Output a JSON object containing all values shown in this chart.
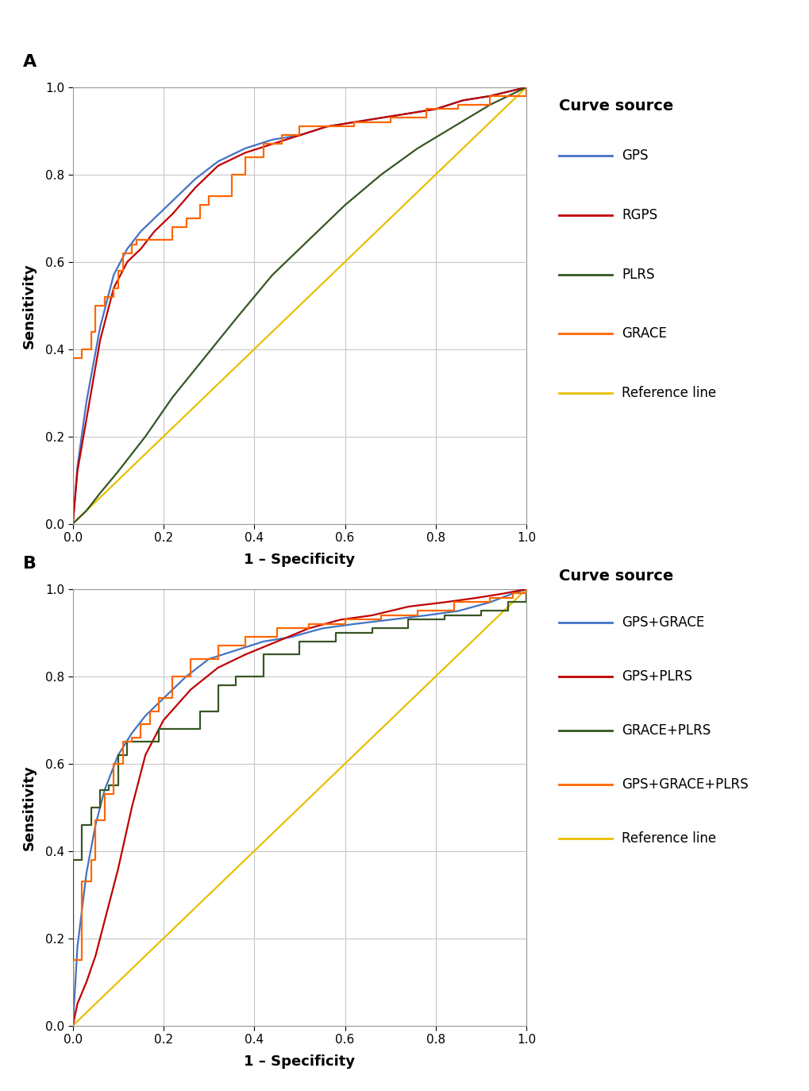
{
  "panel_A": {
    "label": "A",
    "curves": {
      "GPS": {
        "color": "#4472C4",
        "type": "smooth",
        "fpr": [
          0.0,
          0.01,
          0.03,
          0.06,
          0.09,
          0.12,
          0.15,
          0.18,
          0.22,
          0.27,
          0.32,
          0.38,
          0.44,
          0.5,
          0.56,
          0.62,
          0.68,
          0.74,
          0.8,
          0.86,
          0.92,
          0.96,
          1.0
        ],
        "tpr": [
          0.0,
          0.13,
          0.28,
          0.45,
          0.57,
          0.63,
          0.67,
          0.7,
          0.74,
          0.79,
          0.83,
          0.86,
          0.88,
          0.89,
          0.91,
          0.92,
          0.93,
          0.94,
          0.95,
          0.97,
          0.98,
          0.99,
          1.0
        ]
      },
      "RGPS": {
        "color": "#C00000",
        "type": "smooth",
        "fpr": [
          0.0,
          0.01,
          0.03,
          0.06,
          0.09,
          0.12,
          0.15,
          0.18,
          0.22,
          0.27,
          0.32,
          0.38,
          0.44,
          0.5,
          0.56,
          0.62,
          0.68,
          0.74,
          0.8,
          0.86,
          0.92,
          0.96,
          1.0
        ],
        "tpr": [
          0.0,
          0.12,
          0.24,
          0.42,
          0.54,
          0.6,
          0.63,
          0.67,
          0.71,
          0.77,
          0.82,
          0.85,
          0.87,
          0.89,
          0.91,
          0.92,
          0.93,
          0.94,
          0.95,
          0.97,
          0.98,
          0.99,
          1.0
        ]
      },
      "PLRS": {
        "color": "#375623",
        "type": "smooth",
        "fpr": [
          0.0,
          0.03,
          0.06,
          0.1,
          0.16,
          0.22,
          0.29,
          0.36,
          0.44,
          0.52,
          0.6,
          0.68,
          0.76,
          0.84,
          0.92,
          1.0
        ],
        "tpr": [
          0.0,
          0.03,
          0.07,
          0.12,
          0.2,
          0.29,
          0.38,
          0.47,
          0.57,
          0.65,
          0.73,
          0.8,
          0.86,
          0.91,
          0.96,
          1.0
        ]
      },
      "GRACE": {
        "color": "#FF6600",
        "type": "step",
        "fpr": [
          0.0,
          0.0,
          0.02,
          0.04,
          0.05,
          0.07,
          0.09,
          0.1,
          0.11,
          0.13,
          0.14,
          0.16,
          0.18,
          0.19,
          0.22,
          0.25,
          0.28,
          0.3,
          0.35,
          0.38,
          0.42,
          0.46,
          0.5,
          0.56,
          0.62,
          0.7,
          0.78,
          0.85,
          0.92,
          1.0
        ],
        "tpr": [
          0.0,
          0.38,
          0.4,
          0.44,
          0.5,
          0.52,
          0.54,
          0.58,
          0.62,
          0.64,
          0.65,
          0.65,
          0.65,
          0.65,
          0.68,
          0.7,
          0.73,
          0.75,
          0.8,
          0.84,
          0.87,
          0.89,
          0.91,
          0.91,
          0.92,
          0.93,
          0.95,
          0.96,
          0.98,
          1.0
        ]
      },
      "Reference": {
        "color": "#E8C000",
        "type": "line",
        "fpr": [
          0.0,
          1.0
        ],
        "tpr": [
          0.0,
          1.0
        ]
      }
    },
    "legend_labels": [
      "GPS",
      "RGPS",
      "PLRS",
      "GRACE",
      "Reference line"
    ],
    "legend_colors": [
      "#4472C4",
      "#C00000",
      "#375623",
      "#FF6600",
      "#E8C000"
    ]
  },
  "panel_B": {
    "label": "B",
    "curves": {
      "GPS+GRACE": {
        "color": "#4472C4",
        "type": "smooth",
        "fpr": [
          0.0,
          0.01,
          0.03,
          0.05,
          0.07,
          0.1,
          0.13,
          0.16,
          0.2,
          0.25,
          0.3,
          0.36,
          0.42,
          0.48,
          0.55,
          0.62,
          0.7,
          0.78,
          0.85,
          0.92,
          0.97,
          1.0
        ],
        "tpr": [
          0.0,
          0.18,
          0.35,
          0.46,
          0.54,
          0.62,
          0.67,
          0.71,
          0.75,
          0.8,
          0.84,
          0.86,
          0.88,
          0.89,
          0.91,
          0.92,
          0.93,
          0.94,
          0.95,
          0.97,
          0.99,
          1.0
        ]
      },
      "GPS+PLRS": {
        "color": "#C00000",
        "type": "smooth",
        "fpr": [
          0.0,
          0.01,
          0.03,
          0.05,
          0.07,
          0.1,
          0.13,
          0.16,
          0.2,
          0.26,
          0.32,
          0.38,
          0.45,
          0.52,
          0.59,
          0.66,
          0.74,
          0.82,
          0.89,
          0.95,
          1.0
        ],
        "tpr": [
          0.0,
          0.05,
          0.1,
          0.16,
          0.24,
          0.36,
          0.5,
          0.62,
          0.7,
          0.77,
          0.82,
          0.85,
          0.88,
          0.91,
          0.93,
          0.94,
          0.96,
          0.97,
          0.98,
          0.99,
          1.0
        ]
      },
      "GRACE+PLRS": {
        "color": "#375623",
        "type": "step",
        "fpr": [
          0.0,
          0.0,
          0.02,
          0.04,
          0.06,
          0.08,
          0.1,
          0.12,
          0.14,
          0.16,
          0.17,
          0.19,
          0.22,
          0.25,
          0.28,
          0.32,
          0.36,
          0.42,
          0.5,
          0.58,
          0.66,
          0.74,
          0.82,
          0.9,
          0.96,
          1.0
        ],
        "tpr": [
          0.0,
          0.38,
          0.46,
          0.5,
          0.54,
          0.55,
          0.62,
          0.65,
          0.65,
          0.65,
          0.65,
          0.68,
          0.68,
          0.68,
          0.72,
          0.78,
          0.8,
          0.85,
          0.88,
          0.9,
          0.91,
          0.93,
          0.94,
          0.95,
          0.97,
          1.0
        ]
      },
      "GPS+GRACE+PLRS": {
        "color": "#FF6600",
        "type": "step",
        "fpr": [
          0.0,
          0.0,
          0.02,
          0.04,
          0.05,
          0.07,
          0.09,
          0.11,
          0.13,
          0.15,
          0.17,
          0.19,
          0.22,
          0.26,
          0.32,
          0.38,
          0.45,
          0.52,
          0.6,
          0.68,
          0.76,
          0.84,
          0.92,
          0.97,
          1.0
        ],
        "tpr": [
          0.0,
          0.15,
          0.33,
          0.38,
          0.47,
          0.53,
          0.6,
          0.65,
          0.66,
          0.69,
          0.72,
          0.75,
          0.8,
          0.84,
          0.87,
          0.89,
          0.91,
          0.92,
          0.93,
          0.94,
          0.95,
          0.97,
          0.98,
          0.99,
          1.0
        ]
      },
      "Reference": {
        "color": "#E8C000",
        "type": "line",
        "fpr": [
          0.0,
          1.0
        ],
        "tpr": [
          0.0,
          1.0
        ]
      }
    },
    "legend_labels": [
      "GPS+GRACE",
      "GPS+PLRS",
      "GRACE+PLRS",
      "GPS+GRACE+PLRS",
      "Reference line"
    ],
    "legend_colors": [
      "#4472C4",
      "#C00000",
      "#375623",
      "#FF6600",
      "#E8C000"
    ]
  },
  "xlabel": "1 – Specificity",
  "ylabel": "Sensitivity",
  "legend_title": "Curve source",
  "background_color": "#ffffff",
  "grid_color": "#c8c8c8",
  "axis_label_fontsize": 13,
  "tick_fontsize": 11,
  "legend_fontsize": 12,
  "legend_title_fontsize": 14,
  "panel_label_fontsize": 16,
  "line_width": 1.6
}
